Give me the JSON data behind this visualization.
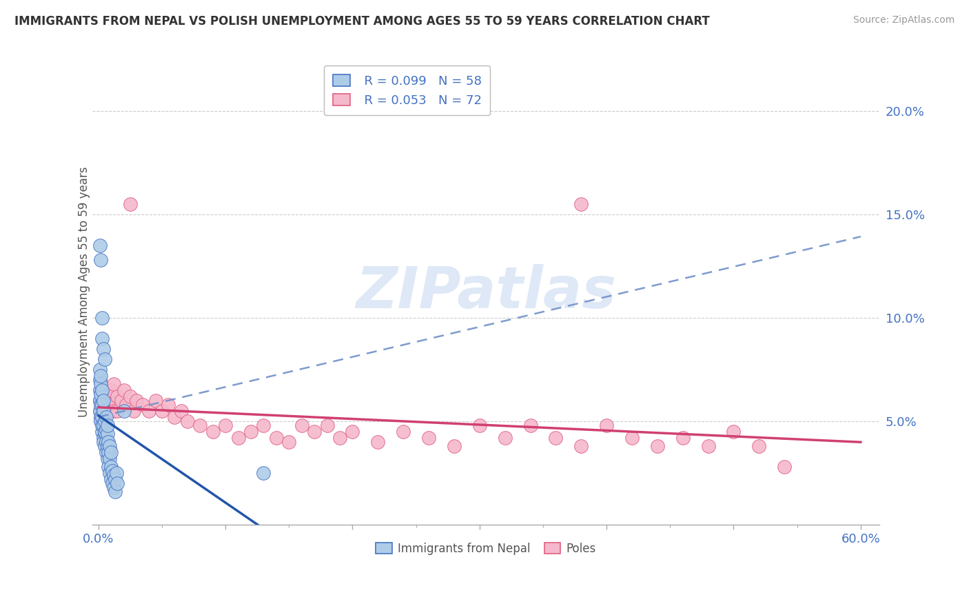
{
  "title": "IMMIGRANTS FROM NEPAL VS POLISH UNEMPLOYMENT AMONG AGES 55 TO 59 YEARS CORRELATION CHART",
  "source": "Source: ZipAtlas.com",
  "ylabel": "Unemployment Among Ages 55 to 59 years",
  "xlim": [
    0.0,
    0.6
  ],
  "ylim": [
    0.0,
    0.22
  ],
  "y_ticks": [
    0.05,
    0.1,
    0.15,
    0.2
  ],
  "y_tick_labels": [
    "5.0%",
    "10.0%",
    "15.0%",
    "20.0%"
  ],
  "nepal_color": "#aecce8",
  "nepal_edge_color": "#4472c4",
  "poles_color": "#f5b8cc",
  "poles_edge_color": "#e06080",
  "dashed_line_color": "#7090c8",
  "nepal_line_color": "#2255aa",
  "poles_line_color": "#d04070",
  "watermark_color": "#c8daf0",
  "nepal_x": [
    0.001,
    0.001,
    0.001,
    0.001,
    0.001,
    0.002,
    0.002,
    0.002,
    0.002,
    0.002,
    0.002,
    0.003,
    0.003,
    0.003,
    0.003,
    0.003,
    0.004,
    0.004,
    0.004,
    0.004,
    0.004,
    0.005,
    0.005,
    0.005,
    0.005,
    0.006,
    0.006,
    0.006,
    0.006,
    0.007,
    0.007,
    0.007,
    0.007,
    0.008,
    0.008,
    0.008,
    0.009,
    0.009,
    0.009,
    0.01,
    0.01,
    0.01,
    0.011,
    0.011,
    0.012,
    0.012,
    0.013,
    0.013,
    0.014,
    0.015,
    0.001,
    0.002,
    0.003,
    0.003,
    0.004,
    0.005,
    0.13,
    0.02
  ],
  "nepal_y": [
    0.055,
    0.065,
    0.07,
    0.075,
    0.06,
    0.052,
    0.058,
    0.063,
    0.068,
    0.072,
    0.05,
    0.045,
    0.052,
    0.058,
    0.065,
    0.048,
    0.042,
    0.048,
    0.055,
    0.06,
    0.04,
    0.038,
    0.044,
    0.05,
    0.045,
    0.035,
    0.04,
    0.046,
    0.052,
    0.032,
    0.038,
    0.044,
    0.048,
    0.028,
    0.035,
    0.04,
    0.025,
    0.032,
    0.038,
    0.022,
    0.028,
    0.035,
    0.02,
    0.026,
    0.018,
    0.024,
    0.016,
    0.022,
    0.025,
    0.02,
    0.135,
    0.128,
    0.09,
    0.1,
    0.085,
    0.08,
    0.025,
    0.055
  ],
  "poles_x": [
    0.001,
    0.001,
    0.002,
    0.002,
    0.002,
    0.003,
    0.003,
    0.003,
    0.004,
    0.004,
    0.005,
    0.005,
    0.005,
    0.006,
    0.006,
    0.007,
    0.007,
    0.008,
    0.008,
    0.009,
    0.01,
    0.01,
    0.012,
    0.012,
    0.015,
    0.015,
    0.018,
    0.02,
    0.022,
    0.025,
    0.028,
    0.03,
    0.035,
    0.04,
    0.045,
    0.05,
    0.055,
    0.06,
    0.065,
    0.07,
    0.08,
    0.09,
    0.1,
    0.11,
    0.12,
    0.13,
    0.14,
    0.15,
    0.16,
    0.17,
    0.18,
    0.19,
    0.2,
    0.22,
    0.24,
    0.26,
    0.28,
    0.3,
    0.32,
    0.34,
    0.36,
    0.38,
    0.4,
    0.42,
    0.44,
    0.46,
    0.48,
    0.5,
    0.52,
    0.54,
    0.025,
    0.38
  ],
  "poles_y": [
    0.06,
    0.055,
    0.058,
    0.052,
    0.065,
    0.05,
    0.062,
    0.055,
    0.048,
    0.06,
    0.045,
    0.055,
    0.065,
    0.042,
    0.058,
    0.04,
    0.062,
    0.038,
    0.055,
    0.036,
    0.065,
    0.058,
    0.055,
    0.068,
    0.062,
    0.055,
    0.06,
    0.065,
    0.058,
    0.062,
    0.055,
    0.06,
    0.058,
    0.055,
    0.06,
    0.055,
    0.058,
    0.052,
    0.055,
    0.05,
    0.048,
    0.045,
    0.048,
    0.042,
    0.045,
    0.048,
    0.042,
    0.04,
    0.048,
    0.045,
    0.048,
    0.042,
    0.045,
    0.04,
    0.045,
    0.042,
    0.038,
    0.048,
    0.042,
    0.048,
    0.042,
    0.038,
    0.048,
    0.042,
    0.038,
    0.042,
    0.038,
    0.045,
    0.038,
    0.028,
    0.155,
    0.155
  ]
}
